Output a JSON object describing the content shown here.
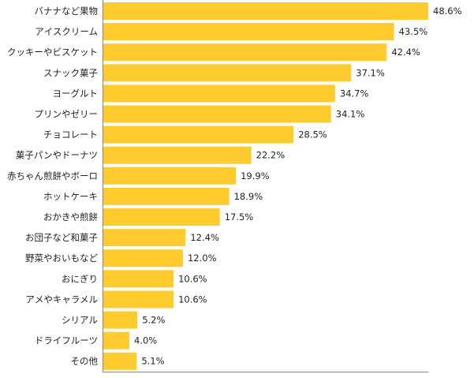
{
  "chart_data": {
    "type": "bar",
    "orientation": "horizontal",
    "categories": [
      "バナナなど果物",
      "アイスクリーム",
      "クッキーやビスケット",
      "スナック菓子",
      "ヨーグルト",
      "プリンやゼリー",
      "チョコレート",
      "菓子パンやドーナツ",
      "赤ちゃん煎餅やボーロ",
      "ホットケーキ",
      "おかきや煎餅",
      "お団子など和菓子",
      "野菜やおいもなど",
      "おにぎり",
      "アメやキャラメル",
      "シリアル",
      "ドライフルーツ",
      "その他"
    ],
    "values": [
      48.6,
      43.5,
      42.4,
      37.1,
      34.7,
      34.1,
      28.5,
      22.2,
      19.9,
      18.9,
      17.5,
      12.4,
      12.0,
      10.6,
      10.6,
      5.2,
      4.0,
      5.1
    ],
    "value_labels": [
      "48.6%",
      "43.5%",
      "42.4%",
      "37.1%",
      "34.7%",
      "34.1%",
      "28.5%",
      "22.2%",
      "19.9%",
      "18.9%",
      "17.5%",
      "12.4%",
      "12.0%",
      "10.6%",
      "10.6%",
      "5.2%",
      "4.0%",
      "5.1%"
    ],
    "xlim": [
      0,
      48.6
    ],
    "grid": false,
    "bar_color": "#ffcb2f",
    "axis_color": "#888888"
  }
}
